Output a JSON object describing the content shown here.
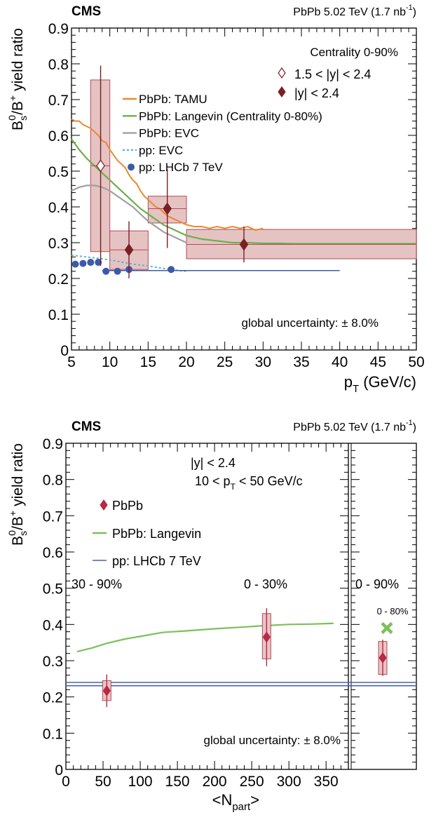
{
  "chart_data": [
    {
      "type": "scatter",
      "label": "CMS",
      "energy_label": "PbPb 5.02 TeV (1.7 nb",
      "energy_sup": "-1",
      "energy_close": ")",
      "ylabel_main": "B",
      "ylabel_s": "s",
      "ylabel_0": "0",
      "ylabel_mid": "/B",
      "ylabel_plus": "+",
      "ylabel_rest": " yield ratio",
      "xlabel_main": "p",
      "xlabel_sub": "T",
      "xlabel_rest": " (GeV/c)",
      "xlim": [
        5,
        50
      ],
      "ylim": [
        0,
        0.9
      ],
      "xticks": [
        "5",
        "10",
        "15",
        "20",
        "25",
        "30",
        "35",
        "40",
        "45",
        "50"
      ],
      "yticks": [
        "0",
        "0.1",
        "0.2",
        "0.3",
        "0.4",
        "0.5",
        "0.6",
        "0.7",
        "0.8",
        "0.9"
      ],
      "centrality_text": "Centrality 0-90%",
      "legend_markers": [
        "1.5 < |y| < 2.4",
        "|y| < 2.4"
      ],
      "legend_lines": [
        "PbPb: TAMU",
        "PbPb: Langevin (Centrality 0-80%)",
        "PbPb: EVC",
        "pp: EVC",
        "pp: LHCb 7 TeV"
      ],
      "global_uncertainty": "global uncertainty: ± 8.0%",
      "colors": {
        "tamu": "#e98a2e",
        "langevin": "#6ab04c",
        "evc": "#a0a0a0",
        "pp_evc": "#5fb3c9",
        "lhcb": "#3b5aa8",
        "data": "#7a1f24",
        "box_fill": "#e5c3c3",
        "box_stroke": "#b74a55"
      },
      "data_forward": [
        {
          "x": 8.8,
          "y": 0.515,
          "xlo": 7.5,
          "xhi": 10,
          "err": 0.28,
          "syst_lo": 0.275,
          "syst_hi": 0.755
        }
      ],
      "data_central": [
        {
          "x": 12.5,
          "y": 0.28,
          "xlo": 10,
          "xhi": 15,
          "err": 0.08,
          "syst_lo": 0.225,
          "syst_hi": 0.333
        },
        {
          "x": 17.5,
          "y": 0.395,
          "xlo": 15,
          "xhi": 20,
          "err": 0.11,
          "syst_lo": 0.355,
          "syst_hi": 0.43
        },
        {
          "x": 27.5,
          "y": 0.295,
          "xlo": 20,
          "xhi": 50,
          "err": 0.05,
          "syst_lo": 0.255,
          "syst_hi": 0.337
        }
      ],
      "tamu": {
        "x": [
          5,
          5.5,
          6,
          6.5,
          7,
          7.5,
          8,
          8.5,
          9,
          9.5,
          10,
          10.5,
          11,
          11.5,
          12,
          12.5,
          13,
          13.5,
          14,
          14.5,
          15,
          15.5,
          16,
          16.5,
          17,
          17.5,
          18,
          18.5,
          19,
          19.5,
          20,
          21,
          22,
          23,
          24,
          25,
          26,
          27,
          28,
          29,
          30
        ],
        "y": [
          0.645,
          0.64,
          0.64,
          0.63,
          0.625,
          0.62,
          0.61,
          0.6,
          0.585,
          0.58,
          0.56,
          0.545,
          0.53,
          0.52,
          0.51,
          0.49,
          0.475,
          0.465,
          0.445,
          0.43,
          0.42,
          0.41,
          0.4,
          0.395,
          0.385,
          0.375,
          0.37,
          0.365,
          0.36,
          0.355,
          0.35,
          0.345,
          0.345,
          0.34,
          0.345,
          0.34,
          0.345,
          0.34,
          0.345,
          0.335,
          0.34
        ]
      },
      "langevin": {
        "x": [
          5,
          6,
          7,
          8,
          9,
          10,
          11,
          12,
          13,
          14,
          15,
          16,
          17,
          18,
          19,
          20,
          22,
          24,
          26,
          28,
          30,
          32,
          34,
          36,
          38,
          40,
          42,
          44,
          46,
          48,
          50
        ],
        "y": [
          0.59,
          0.56,
          0.535,
          0.515,
          0.495,
          0.475,
          0.455,
          0.435,
          0.415,
          0.395,
          0.38,
          0.365,
          0.35,
          0.34,
          0.33,
          0.32,
          0.31,
          0.305,
          0.3,
          0.3,
          0.298,
          0.298,
          0.297,
          0.297,
          0.297,
          0.297,
          0.297,
          0.297,
          0.297,
          0.297,
          0.297
        ]
      },
      "evc": {
        "x": [
          5,
          6,
          7,
          8,
          9,
          10,
          11,
          12,
          13,
          14,
          15,
          16,
          17,
          18,
          19,
          20
        ],
        "y": [
          0.445,
          0.455,
          0.46,
          0.46,
          0.455,
          0.445,
          0.43,
          0.415,
          0.4,
          0.38,
          0.36,
          0.345,
          0.33,
          0.32,
          0.31,
          0.3
        ]
      },
      "pp_evc": {
        "x": [
          5,
          7,
          9,
          11,
          13,
          15,
          17,
          19,
          20
        ],
        "y": [
          0.265,
          0.26,
          0.255,
          0.248,
          0.24,
          0.235,
          0.228,
          0.222,
          0.22
        ]
      },
      "lhcb_points": {
        "x": [
          5.5,
          6.5,
          7.5,
          8.5,
          9.5,
          11,
          12.5,
          18
        ],
        "y": [
          0.24,
          0.242,
          0.245,
          0.245,
          0.22,
          0.22,
          0.225,
          0.225
        ]
      },
      "lhcb_line": {
        "x": [
          9,
          40
        ],
        "y": [
          0.222,
          0.222
        ]
      }
    },
    {
      "type": "scatter",
      "label": "CMS",
      "energy_label": "PbPb 5.02 TeV (1.7 nb",
      "energy_sup": "-1",
      "energy_close": ")",
      "ylabel_main": "B",
      "ylabel_s": "s",
      "ylabel_0": "0",
      "ylabel_mid": "/B",
      "ylabel_plus": "+",
      "ylabel_rest": " yield ratio",
      "xlabel_main": "<N",
      "xlabel_sub": "part",
      "xlabel_rest": ">",
      "xlim": [
        0,
        380
      ],
      "ylim": [
        0,
        0.9
      ],
      "xticks": [
        "0",
        "50",
        "100",
        "150",
        "200",
        "250",
        "300",
        "350"
      ],
      "yticks": [
        "0",
        "0.1",
        "0.2",
        "0.3",
        "0.4",
        "0.5",
        "0.6",
        "0.7",
        "0.8",
        "0.9"
      ],
      "rapidity_text": "|y| < 2.4",
      "pt_text_1": "10 < p",
      "pt_text_sub": "T",
      "pt_text_2": " < 50 GeV/c",
      "legend": [
        "PbPb",
        "PbPb: Langevin",
        "pp: LHCb 7 TeV"
      ],
      "centrality_labels": [
        "30 - 90%",
        "0 - 30%",
        "0 - 90%"
      ],
      "langevin_point_label": "0 - 80%",
      "global_uncertainty": "global uncertainty: ± 8.0%",
      "colors": {
        "data": "#b52a45",
        "langevin": "#7cc05a",
        "lhcb": "#4a62b0",
        "box_fill": "#e9c4c6",
        "box_stroke": "#b74a55"
      },
      "data": [
        {
          "x": 55,
          "y": 0.217,
          "err": 0.045,
          "syst_lo": 0.19,
          "syst_hi": 0.245
        },
        {
          "x": 270,
          "y": 0.365,
          "err": 0.08,
          "syst_lo": 0.305,
          "syst_hi": 0.43
        }
      ],
      "langevin": {
        "x": [
          15,
          35,
          55,
          80,
          100,
          130,
          160,
          200,
          240,
          270,
          300,
          330,
          360
        ],
        "y": [
          0.325,
          0.335,
          0.348,
          0.36,
          0.367,
          0.378,
          0.382,
          0.388,
          0.393,
          0.397,
          0.4,
          0.401,
          0.403
        ]
      },
      "lhcb_band": [
        0.231,
        0.24
      ],
      "integrated": {
        "y": 0.308,
        "err": 0.05,
        "syst_lo": 0.262,
        "syst_hi": 0.353,
        "langevin_y": 0.39
      }
    }
  ]
}
